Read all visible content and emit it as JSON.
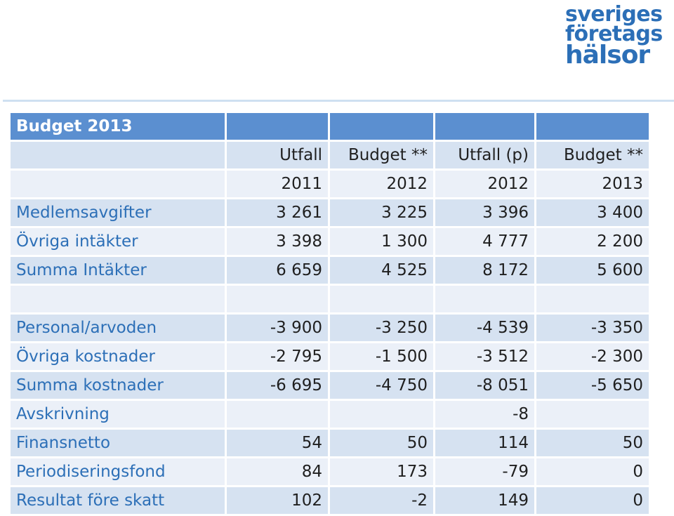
{
  "logo": {
    "line1": "sveriges",
    "line2": "företags",
    "line3": "hälsor"
  },
  "table": {
    "title": "Budget 2013",
    "headers": [
      "Utfall",
      "Budget **",
      "Utfall (p)",
      "Budget **"
    ],
    "years": [
      "2011",
      "2012",
      "2012",
      "2013"
    ],
    "rows": [
      {
        "label": "Medlemsavgifter",
        "values": [
          "3 261",
          "3 225",
          "3 396",
          "3 400"
        ]
      },
      {
        "label": "Övriga intäkter",
        "values": [
          "3 398",
          "1 300",
          "4 777",
          "2 200"
        ]
      },
      {
        "label": "Summa Intäkter",
        "values": [
          "6 659",
          "4 525",
          "8 172",
          "5 600"
        ]
      },
      {
        "label": "",
        "values": [
          "",
          "",
          "",
          ""
        ]
      },
      {
        "label": "Personal/arvoden",
        "values": [
          "-3 900",
          "-3 250",
          "-4 539",
          "-3 350"
        ]
      },
      {
        "label": "Övriga kostnader",
        "values": [
          "-2 795",
          "-1 500",
          "-3 512",
          "-2 300"
        ]
      },
      {
        "label": "Summa kostnader",
        "values": [
          "-6 695",
          "-4 750",
          "-8 051",
          "-5 650"
        ]
      },
      {
        "label": "Avskrivning",
        "values": [
          "",
          "",
          "-8",
          ""
        ]
      },
      {
        "label": "Finansnetto",
        "values": [
          "54",
          "50",
          "114",
          "50"
        ]
      },
      {
        "label": "Periodiseringsfond",
        "values": [
          "84",
          "173",
          "-79",
          "0"
        ]
      },
      {
        "label": "Resultat före skatt",
        "values": [
          "102",
          "-2",
          "149",
          "0"
        ]
      }
    ]
  },
  "colors": {
    "header_bg": "#5b8fd0",
    "row_dark": "#d6e2f1",
    "row_light": "#ebf0f8",
    "label_text": "#2c6fb7",
    "logo": "#2c6fb7"
  }
}
